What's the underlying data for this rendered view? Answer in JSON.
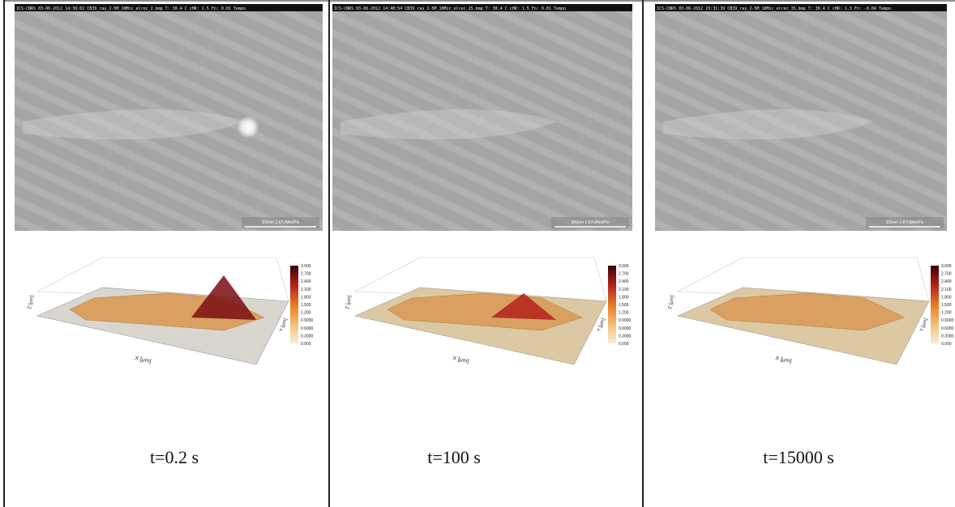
{
  "panels": [
    {
      "header": "ICS-CNRS 03-06-2012 14:39:02 CB39_ray_2-5M_10Mic_elrec_2.bmp T: 30.4 C cHR: 1.5 Fn: 0.01 Tempo",
      "scale": "300nm 1.67UMm/Pix",
      "x_label": "X [µm]",
      "y_label": "Y [µm]",
      "z_label": "Z [µm]",
      "colorbar": [
        "3.000",
        "2.700",
        "2.400",
        "2.100",
        "1.800",
        "1.500",
        "1.200",
        "0.9000",
        "0.6000",
        "0.3000",
        "0.000"
      ],
      "caption": "t=0.2 s"
    },
    {
      "header": "ICS-CNRS 03-06-2012 14:40:54 CB39_ray_2-5M_10Mic_elrec_25.bmp T: 30.4 C cHR: 1.5 Fn: 0.01 Tempo",
      "scale": "300nm 1.67UMm/Pix",
      "x_label": "X [µm]",
      "y_label": "Y [µm]",
      "z_label": "Z [µm]",
      "colorbar": [
        "3.000",
        "2.700",
        "2.400",
        "2.100",
        "1.800",
        "1.500",
        "1.200",
        "0.9000",
        "0.6000",
        "0.3000",
        "0.000"
      ],
      "caption": "t=100 s"
    },
    {
      "header": "ICS-CNRS 03-06-2012 15:31:39 CB39_ray_2-5M_10Mic_elrec_35.bmp T: 30.4 C cHR: 1.3 Fn: -0.04 Tempo",
      "scale": "300nm 1.67UMm/Pix",
      "x_label": "X [µm]",
      "y_label": "Y [µm]",
      "z_label": "Z [µm]",
      "colorbar": [
        "3.000",
        "2.700",
        "2.400",
        "2.100",
        "1.800",
        "1.500",
        "1.200",
        "0.9000",
        "0.6000",
        "0.3000",
        "0.000"
      ],
      "caption": "t=15000 s"
    }
  ]
}
